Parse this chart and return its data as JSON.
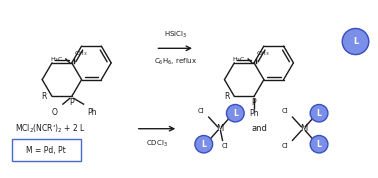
{
  "bg_color": "#ffffff",
  "line_color": "#1a1a1a",
  "blue_fill": "#7b8fe8",
  "blue_edge": "#3a4fc0",
  "box_edge": "#4a6ac8",
  "figsize": [
    3.78,
    1.78
  ],
  "dpi": 100,
  "arrow1_top": "HSiCl$_3$",
  "arrow1_bot": "C$_6$H$_6$, reflux",
  "arrow2_bot": "CDCl$_3$",
  "reactant_text": "MCl$_2$(NCR’)$_2$ + 2 L",
  "box_text": "M = Pd, Pt",
  "and_text": "and"
}
